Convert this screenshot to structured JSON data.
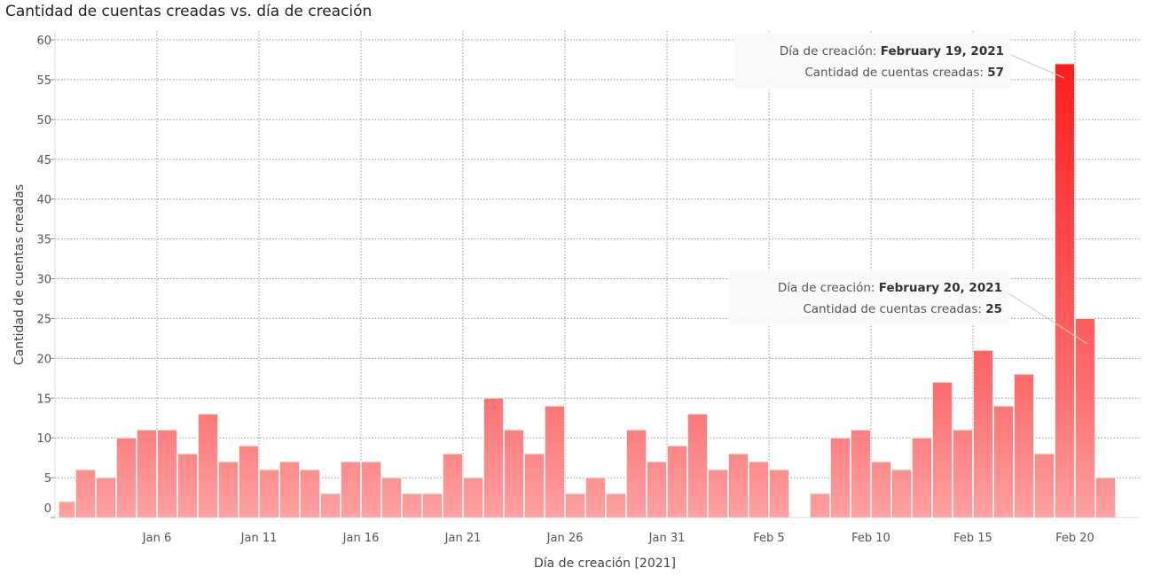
{
  "chart_data": {
    "type": "bar",
    "title": "Cantidad de cuentas creadas vs. día de creación",
    "xlabel": "Día de creación [2021]",
    "ylabel": "Cantidad de cuentas creadas",
    "ylim": [
      0,
      60
    ],
    "yticks": [
      0,
      5,
      10,
      15,
      20,
      25,
      30,
      35,
      40,
      45,
      50,
      55,
      60
    ],
    "start_date": "2021-01-01",
    "xticks": [
      {
        "label": "Jan 6",
        "day": 5
      },
      {
        "label": "Jan 11",
        "day": 10
      },
      {
        "label": "Jan 16",
        "day": 15
      },
      {
        "label": "Jan 21",
        "day": 20
      },
      {
        "label": "Jan 26",
        "day": 25
      },
      {
        "label": "Jan 31",
        "day": 30
      },
      {
        "label": "Feb 5",
        "day": 35
      },
      {
        "label": "Feb 10",
        "day": 40
      },
      {
        "label": "Feb 15",
        "day": 45
      },
      {
        "label": "Feb 20",
        "day": 50
      }
    ],
    "values": [
      2,
      6,
      5,
      10,
      11,
      11,
      8,
      13,
      7,
      9,
      6,
      7,
      6,
      3,
      7,
      7,
      5,
      3,
      3,
      8,
      5,
      15,
      11,
      8,
      14,
      3,
      5,
      3,
      11,
      7,
      9,
      13,
      6,
      8,
      7,
      6,
      null,
      3,
      10,
      11,
      7,
      6,
      10,
      17,
      11,
      21,
      14,
      18,
      8,
      57,
      25,
      5
    ],
    "grid": true,
    "colors": {
      "high": "#ff1a1a",
      "low": "#ffa0a0"
    },
    "annotations": [
      {
        "day": 49,
        "label1": "Día de creación: ",
        "value1": "February 19, 2021",
        "label2": "Cantidad de cuentas creadas: ",
        "value2": "57"
      },
      {
        "day": 50,
        "label1": "Día de creación: ",
        "value1": "February 20, 2021",
        "label2": "Cantidad de cuentas creadas: ",
        "value2": "25"
      }
    ]
  }
}
